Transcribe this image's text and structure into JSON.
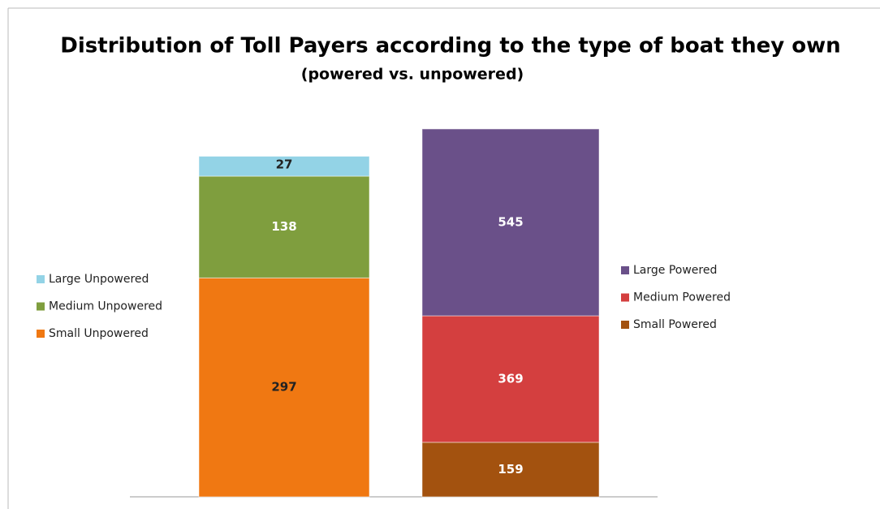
{
  "title": "Distribution of Toll Payers according to the type of boat they own",
  "subtitle": "(powered vs. unpowered)",
  "chart_data": [
    {
      "type": "bar",
      "stacked": true,
      "categories": [
        null
      ],
      "ylim": [
        0,
        500
      ],
      "legend": "left",
      "series": [
        {
          "name": "Small Unpowered",
          "color": "#f07812",
          "label_color": "#222222",
          "values": [
            297
          ]
        },
        {
          "name": "Medium Unpowered",
          "color": "#7f9e3e",
          "label_color": "#ffffff",
          "values": [
            138
          ]
        },
        {
          "name": "Large Unpowered",
          "color": "#93d3e6",
          "label_color": "#222222",
          "values": [
            27
          ]
        }
      ]
    },
    {
      "type": "bar",
      "stacked": true,
      "categories": [
        null
      ],
      "ylim": [
        0,
        1075
      ],
      "legend": "right",
      "series": [
        {
          "name": "Small Powered",
          "color": "#a3520f",
          "label_color": "#ffffff",
          "values": [
            159
          ]
        },
        {
          "name": "Medium Powered",
          "color": "#d43f3f",
          "label_color": "#ffffff",
          "values": [
            369
          ]
        },
        {
          "name": "Large Powered",
          "color": "#6a5089",
          "label_color": "#ffffff",
          "values": [
            545
          ]
        }
      ]
    }
  ]
}
